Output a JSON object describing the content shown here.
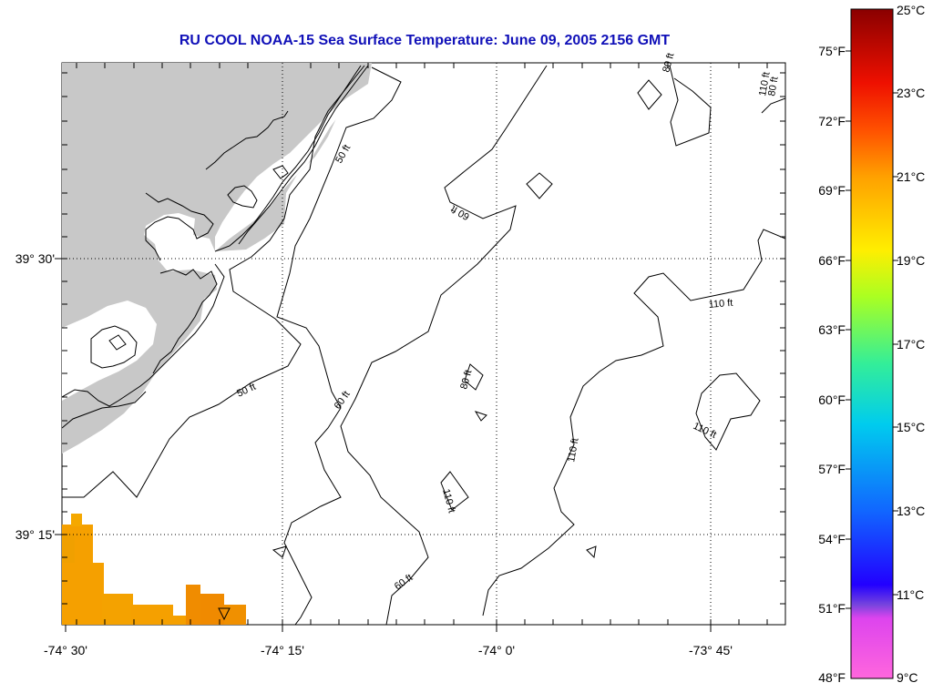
{
  "title": "RU COOL  NOAA-15  Sea Surface Temperature:  June 09, 2005 2156 GMT",
  "lat_labels": [
    "39° 30'",
    "39° 15'"
  ],
  "lon_labels": [
    "-74° 30'",
    "-74° 15'",
    "-74° 0'",
    "-73° 45'"
  ],
  "colorbar": {
    "celsius_labels": [
      "25°C",
      "23°C",
      "21°C",
      "19°C",
      "17°C",
      "15°C",
      "13°C",
      "11°C",
      "9°C"
    ],
    "fahrenheit_labels": [
      "75°F",
      "72°F",
      "69°F",
      "66°F",
      "63°F",
      "60°F",
      "57°F",
      "54°F",
      "51°F",
      "48°F"
    ],
    "min_c": 9,
    "max_c": 25
  },
  "contour_labels": [
    "50 ft",
    "50 ft",
    "60 ft",
    "60 ft",
    "60 ft",
    "80 ft",
    "80 ft",
    "80 ft",
    "110 ft",
    "110 ft",
    "110 ft",
    "110 ft",
    "110 ft"
  ],
  "colors": {
    "land": "#c8c8c8",
    "title": "#1010b8",
    "sst_patch": "#f5a000",
    "sst_patch_warm": "#f08a00"
  }
}
